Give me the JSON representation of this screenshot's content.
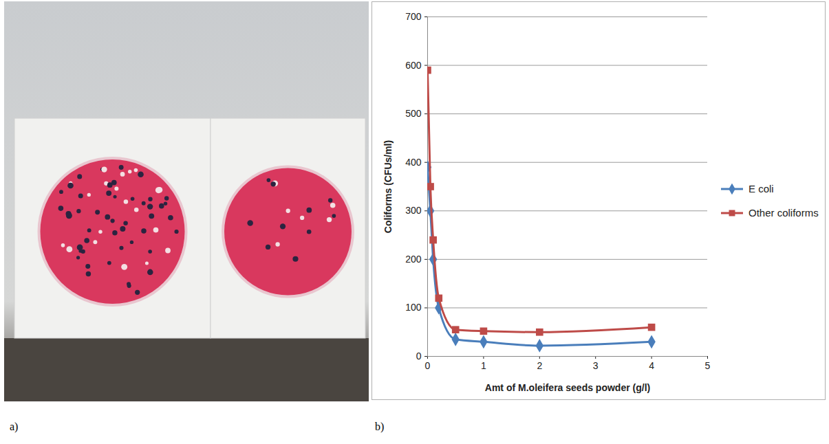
{
  "panel_labels": [
    "a)",
    "b)"
  ],
  "chart_data": {
    "type": "line",
    "x_label": "Amt of M.oleifera seeds powder (g/l)",
    "y_label": "Coliforms (CFUs/ml)",
    "x": [
      0,
      0.05,
      0.1,
      0.2,
      0.5,
      1,
      2,
      4
    ],
    "series": [
      {
        "name": "E coli",
        "color": "#4a7ebb",
        "marker": "diamond",
        "line_style": "solid",
        "values": [
          390,
          300,
          200,
          100,
          35,
          30,
          22,
          30
        ]
      },
      {
        "name": "Other coliforms",
        "color": "#be4b48",
        "marker": "square",
        "line_style": "solid",
        "values": [
          590,
          350,
          240,
          120,
          55,
          52,
          50,
          60
        ]
      }
    ],
    "xlim": [
      0,
      5
    ],
    "xticks": [
      0,
      1,
      2,
      3,
      4,
      5
    ],
    "ylim": [
      0,
      700
    ],
    "yticks": [
      0,
      100,
      200,
      300,
      400,
      500,
      600,
      700
    ],
    "grid": true,
    "legend": "right"
  }
}
